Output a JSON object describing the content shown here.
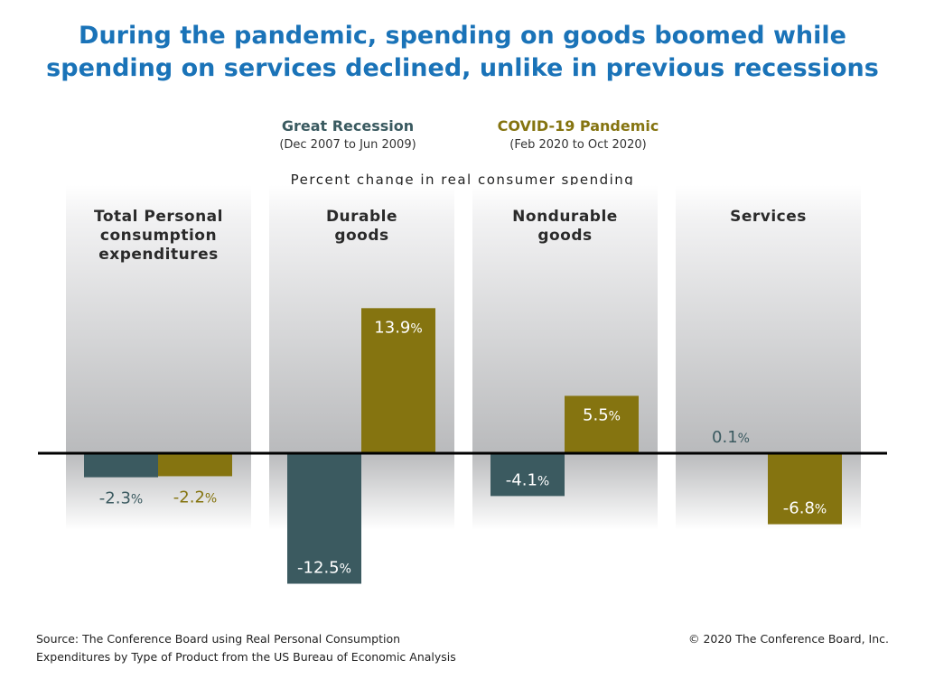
{
  "title": {
    "line1": "During the pandemic, spending on goods boomed while",
    "line2": "spending on services declined, unlike in previous recessions"
  },
  "legend": {
    "great_recession": {
      "name": "Great Recession",
      "period": "(Dec 2007 to Jun 2009)"
    },
    "covid": {
      "name": "COVID-19 Pandemic",
      "period": "(Feb 2020 to Oct 2020)"
    }
  },
  "colors": {
    "great_recession": "#3b5a60",
    "covid": "#857410",
    "title": "#1a73b8",
    "panel_gray": "#bdbec0",
    "zero_line": "#000000"
  },
  "chart_data": {
    "type": "bar",
    "ylabel": "Percent change in real consumer spending",
    "categories": [
      "Total Personal consumption expenditures",
      "Durable goods",
      "Nondurable goods",
      "Services"
    ],
    "category_lines": [
      [
        "Total Personal",
        "consumption",
        "expenditures"
      ],
      [
        "Durable",
        "goods"
      ],
      [
        "Nondurable",
        "goods"
      ],
      [
        "Services"
      ]
    ],
    "series": [
      {
        "name": "Great Recession",
        "values": [
          -2.3,
          -12.5,
          -4.1,
          0.1
        ]
      },
      {
        "name": "COVID-19 Pandemic",
        "values": [
          -2.2,
          13.9,
          5.5,
          -6.8
        ]
      }
    ],
    "labels": [
      [
        "-2.3",
        "-12.5",
        "-4.1",
        "0.1"
      ],
      [
        "-2.2",
        "13.9",
        "5.5",
        "-6.8"
      ]
    ],
    "unit": "%"
  },
  "footer": {
    "source_line1": "Source: The Conference Board using Real Personal Consumption",
    "source_line2": "Expenditures by Type of Product from the US Bureau of Economic Analysis",
    "copyright": "© 2020 The Conference Board, Inc."
  }
}
